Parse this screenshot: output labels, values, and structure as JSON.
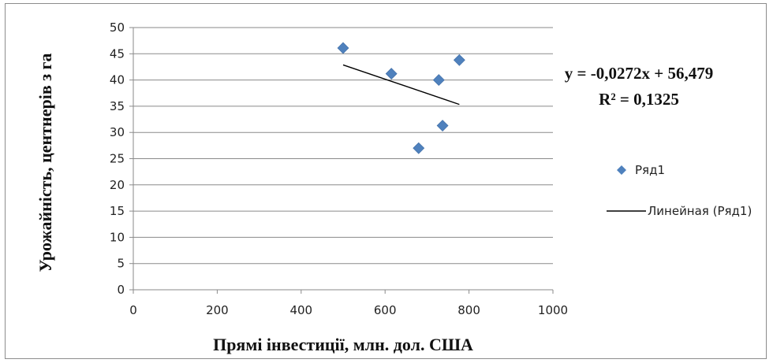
{
  "chart_data": {
    "type": "scatter",
    "xlabel": "Прямі інвестиції, млн. дол. США",
    "ylabel": "Урожайність, центнерів з га",
    "xlim": [
      0,
      1000
    ],
    "ylim": [
      0,
      50
    ],
    "xticks": [
      0,
      200,
      400,
      600,
      800,
      1000
    ],
    "yticks": [
      0,
      5,
      10,
      15,
      20,
      25,
      30,
      35,
      40,
      45,
      50
    ],
    "grid": "horizontal",
    "legend_position": "right",
    "series": [
      {
        "name": "Ряд1",
        "marker": "diamond",
        "color": "#4f81bd",
        "points": [
          {
            "x": 500,
            "y": 46.1
          },
          {
            "x": 615,
            "y": 41.2
          },
          {
            "x": 680,
            "y": 27.0
          },
          {
            "x": 728,
            "y": 40.0
          },
          {
            "x": 737,
            "y": 31.3
          },
          {
            "x": 777,
            "y": 43.8
          }
        ]
      }
    ],
    "trendline": {
      "name": "Линейная (Ряд1)",
      "color": "#000000",
      "slope": -0.0272,
      "intercept": 56.479,
      "x_range": [
        500,
        777
      ],
      "equation": "y = -0,0272x + 56,479",
      "r2": "R² = 0,1325"
    }
  }
}
